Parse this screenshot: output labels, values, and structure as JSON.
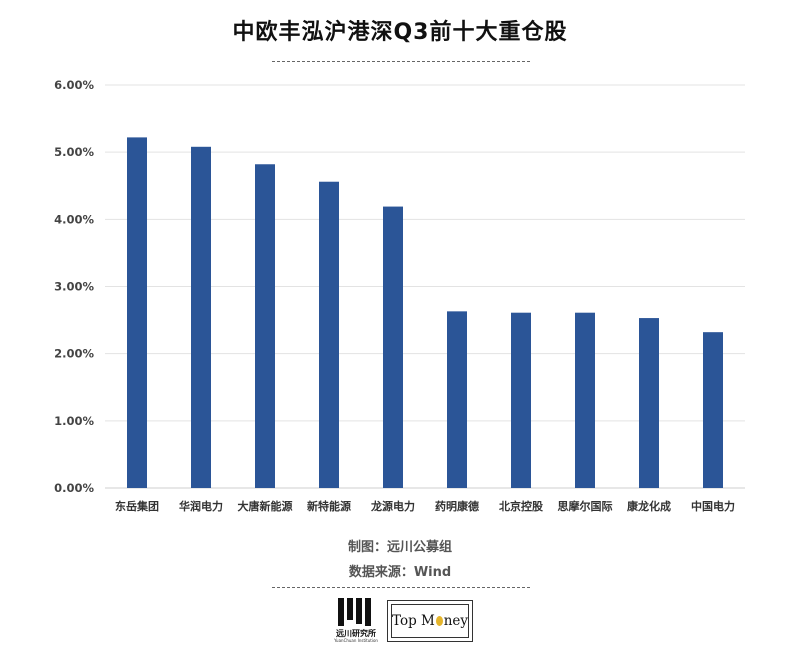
{
  "chart_data": {
    "type": "bar",
    "title": "中欧丰泓沪港深Q3前十大重仓股",
    "categories": [
      "东岳集团",
      "华润电力",
      "大唐新能源",
      "新特能源",
      "龙源电力",
      "药明康德",
      "北京控股",
      "思摩尔国际",
      "康龙化成",
      "中国电力"
    ],
    "values": [
      5.22,
      5.08,
      4.82,
      4.56,
      4.19,
      2.63,
      2.61,
      2.61,
      2.53,
      2.32
    ],
    "value_format": "percent",
    "ylim": [
      0,
      6
    ],
    "yticks": [
      "0.00%",
      "1.00%",
      "2.00%",
      "3.00%",
      "4.00%",
      "5.00%",
      "6.00%"
    ],
    "xlabel": "",
    "ylabel": "",
    "grid": true,
    "bar_color": "#2b5597"
  },
  "credits": {
    "maker": "制图：远川公募组",
    "source": "数据来源：Wind"
  },
  "logos": {
    "yuanchuan_name": "远川研究所",
    "yuanchuan_sub": "YuanChuan Institution",
    "topmoney_before": "Top M",
    "topmoney_after": "ney"
  },
  "colors": {
    "bar": "#2b5597",
    "grid": "#e3e3e3",
    "coin": "#e5b52c"
  }
}
